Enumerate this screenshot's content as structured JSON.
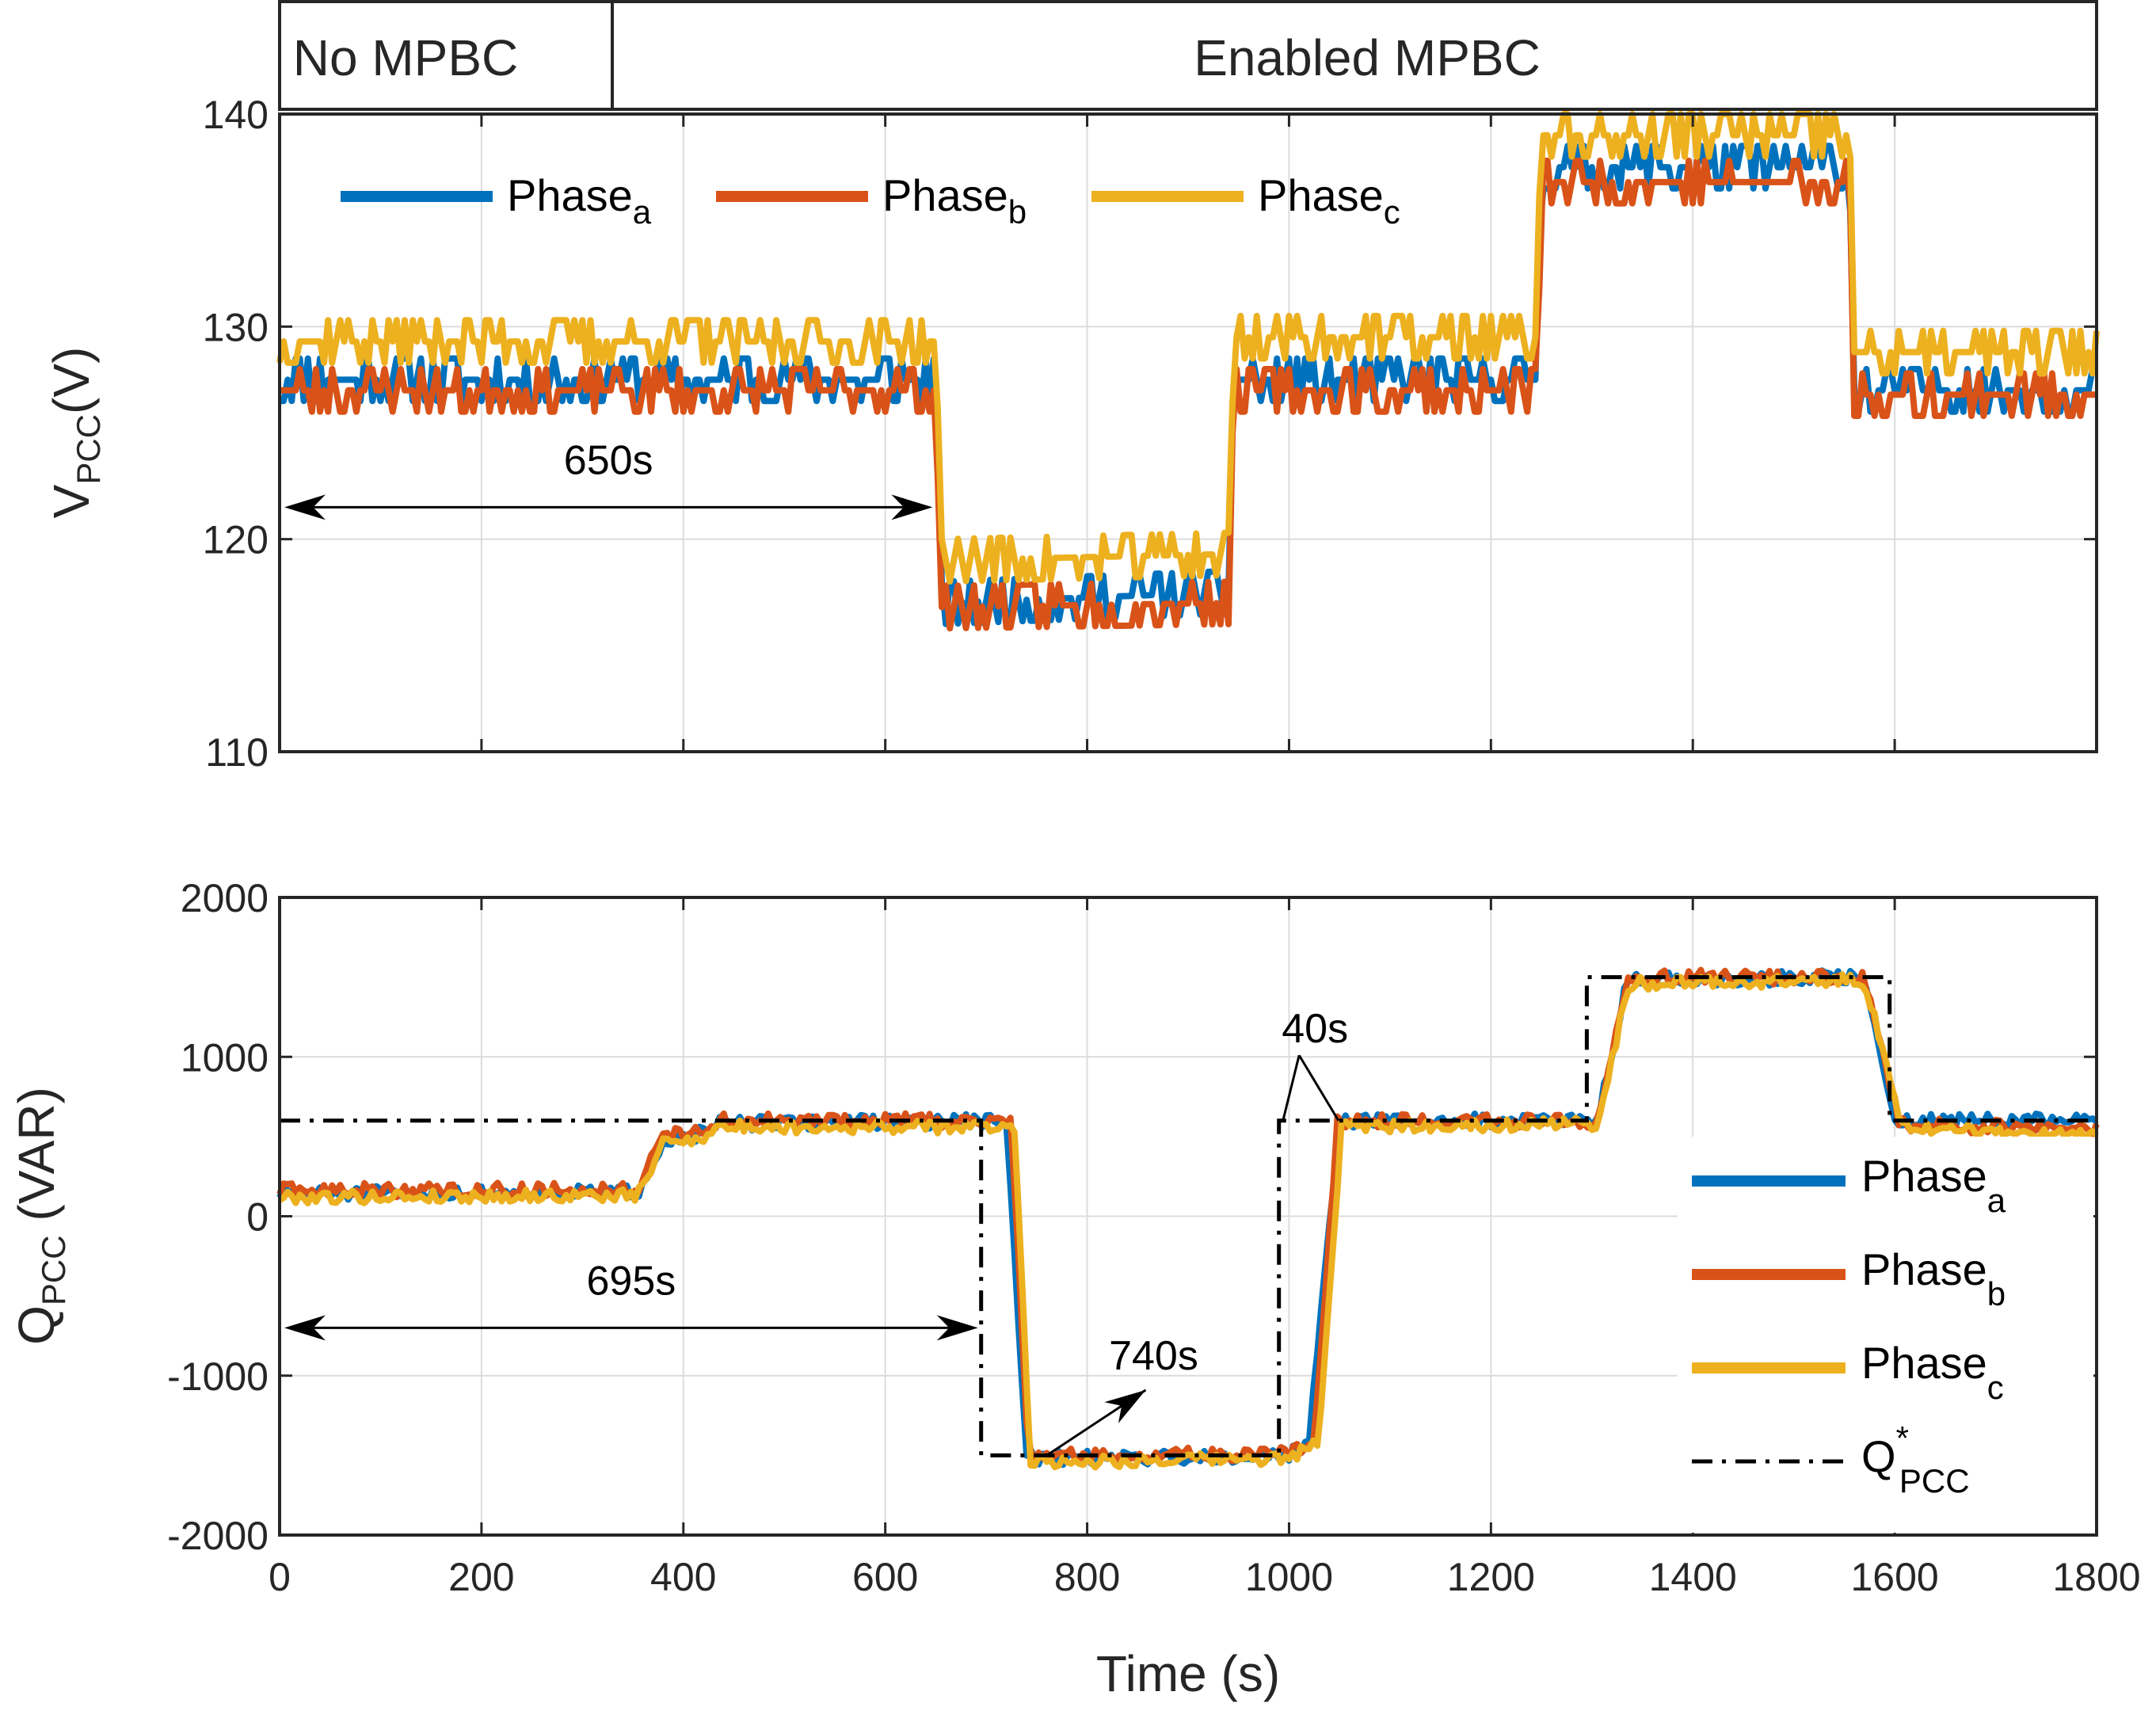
{
  "chart_data": [
    {
      "type": "line",
      "title": "",
      "xlabel": "",
      "ylabel": {
        "main": "V",
        "sub": "PCC",
        "unit": "(V)"
      },
      "xlim": [
        0,
        1800
      ],
      "ylim": [
        110,
        140
      ],
      "xticks": [
        "0",
        "200",
        "400",
        "600",
        "800",
        "1000",
        "1200",
        "1400",
        "1600",
        "1800"
      ],
      "yticks": [
        "110",
        "120",
        "130",
        "140"
      ],
      "grid": true,
      "legend_position": "top",
      "legend": [
        {
          "base": "Phase",
          "sub": "a"
        },
        {
          "base": "Phase",
          "sub": "b"
        },
        {
          "base": "Phase",
          "sub": "c"
        }
      ],
      "mode_bar": {
        "left": "No MPBC",
        "right": "Enabled MPBC",
        "boundary_x": 330
      },
      "series": [
        {
          "name": "Phase_a",
          "color": "#0072BD",
          "segments": [
            [
              0,
              127.5
            ],
            [
              650,
              127.5
            ],
            [
              655,
              117
            ],
            [
              940,
              117.5
            ],
            [
              945,
              127.5
            ],
            [
              1245,
              127.5
            ],
            [
              1250,
              137.5
            ],
            [
              1555,
              137.5
            ],
            [
              1560,
              127
            ],
            [
              1800,
              127
            ]
          ],
          "noise": 0.9,
          "seed": 11
        },
        {
          "name": "Phase_b",
          "color": "#D95319",
          "segments": [
            [
              0,
              127
            ],
            [
              650,
              127
            ],
            [
              655,
              116.8
            ],
            [
              940,
              117
            ],
            [
              945,
              127
            ],
            [
              1245,
              127
            ],
            [
              1250,
              136.8
            ],
            [
              1555,
              136.8
            ],
            [
              1560,
              126.8
            ],
            [
              1800,
              126.8
            ]
          ],
          "noise": 0.7,
          "seed": 23
        },
        {
          "name": "Phase_c",
          "color": "#EDB120",
          "segments": [
            [
              0,
              129.3
            ],
            [
              650,
              129.3
            ],
            [
              655,
              119
            ],
            [
              940,
              119.3
            ],
            [
              945,
              129.5
            ],
            [
              1245,
              129.5
            ],
            [
              1250,
              139
            ],
            [
              1555,
              139
            ],
            [
              1560,
              128.8
            ],
            [
              1800,
              128.8
            ]
          ],
          "noise": 0.8,
          "seed": 37
        }
      ],
      "annotations": [
        {
          "text": "650s",
          "x_from": 0,
          "x_to": 650,
          "y": 121.5
        }
      ]
    },
    {
      "type": "line",
      "title": "",
      "xlabel": "Time (s)",
      "ylabel": {
        "main": "Q",
        "sub": "PCC",
        "unit": " (VAR)"
      },
      "xlim": [
        0,
        1800
      ],
      "ylim": [
        -2000,
        2000
      ],
      "xticks": [
        "0",
        "200",
        "400",
        "600",
        "800",
        "1000",
        "1200",
        "1400",
        "1600",
        "1800"
      ],
      "yticks": [
        "-2000",
        "-1000",
        "0",
        "1000",
        "2000"
      ],
      "grid": true,
      "legend_position": "bottom-right",
      "legend": [
        {
          "base": "Phase",
          "sub": "a"
        },
        {
          "base": "Phase",
          "sub": "b"
        },
        {
          "base": "Phase",
          "sub": "c"
        },
        {
          "base": "Q",
          "sup": "*",
          "sub": "PCC"
        }
      ],
      "series": [
        {
          "name": "Phase_a",
          "color": "#0072BD",
          "segments": [
            [
              0,
              140
            ],
            [
              355,
              150
            ],
            [
              380,
              480
            ],
            [
              420,
              520
            ],
            [
              435,
              580
            ],
            [
              700,
              600
            ],
            [
              720,
              580
            ],
            [
              740,
              -1500
            ],
            [
              760,
              -1520
            ],
            [
              1000,
              -1500
            ],
            [
              1020,
              -1400
            ],
            [
              1050,
              600
            ],
            [
              1290,
              600
            ],
            [
              1305,
              600
            ],
            [
              1335,
              1480
            ],
            [
              1570,
              1500
            ],
            [
              1600,
              600
            ],
            [
              1800,
              600
            ]
          ],
          "noise": 45,
          "seed": 51
        },
        {
          "name": "Phase_b",
          "color": "#D95319",
          "segments": [
            [
              0,
              160
            ],
            [
              355,
              170
            ],
            [
              380,
              500
            ],
            [
              420,
              540
            ],
            [
              435,
              600
            ],
            [
              700,
              600
            ],
            [
              725,
              580
            ],
            [
              742,
              -1490
            ],
            [
              760,
              -1500
            ],
            [
              1000,
              -1490
            ],
            [
              1025,
              -1400
            ],
            [
              1048,
              600
            ],
            [
              1290,
              600
            ],
            [
              1305,
              600
            ],
            [
              1335,
              1500
            ],
            [
              1570,
              1500
            ],
            [
              1605,
              580
            ],
            [
              1800,
              540
            ]
          ],
          "noise": 45,
          "seed": 63
        },
        {
          "name": "Phase_c",
          "color": "#EDB120",
          "segments": [
            [
              0,
              120
            ],
            [
              355,
              130
            ],
            [
              380,
              460
            ],
            [
              420,
              500
            ],
            [
              435,
              560
            ],
            [
              700,
              560
            ],
            [
              728,
              560
            ],
            [
              744,
              -1530
            ],
            [
              760,
              -1540
            ],
            [
              1000,
              -1520
            ],
            [
              1030,
              -1400
            ],
            [
              1052,
              560
            ],
            [
              1290,
              580
            ],
            [
              1305,
              580
            ],
            [
              1337,
              1460
            ],
            [
              1570,
              1480
            ],
            [
              1608,
              560
            ],
            [
              1800,
              500
            ]
          ],
          "noise": 40,
          "seed": 79
        },
        {
          "name": "Q_PCC*",
          "color": "#000000",
          "dash": "step",
          "segments": [
            [
              0,
              600
            ],
            [
              695,
              600
            ],
            [
              695,
              -1500
            ],
            [
              990,
              -1500
            ],
            [
              990,
              600
            ],
            [
              1295,
              600
            ],
            [
              1295,
              1500
            ],
            [
              1595,
              1500
            ],
            [
              1595,
              600
            ],
            [
              1800,
              600
            ]
          ]
        }
      ],
      "annotations": [
        {
          "text": "695s",
          "x_from": 0,
          "x_to": 695,
          "y": -700
        },
        {
          "text": "740s",
          "arrow_from": [
            760,
            -1500
          ],
          "arrow_to": [
            858,
            -1090
          ]
        },
        {
          "text": "40s",
          "arrow_tips": [
            [
              994,
              600
            ],
            [
              1049,
              600
            ]
          ],
          "origin": [
            1010,
            1010
          ]
        }
      ]
    }
  ]
}
